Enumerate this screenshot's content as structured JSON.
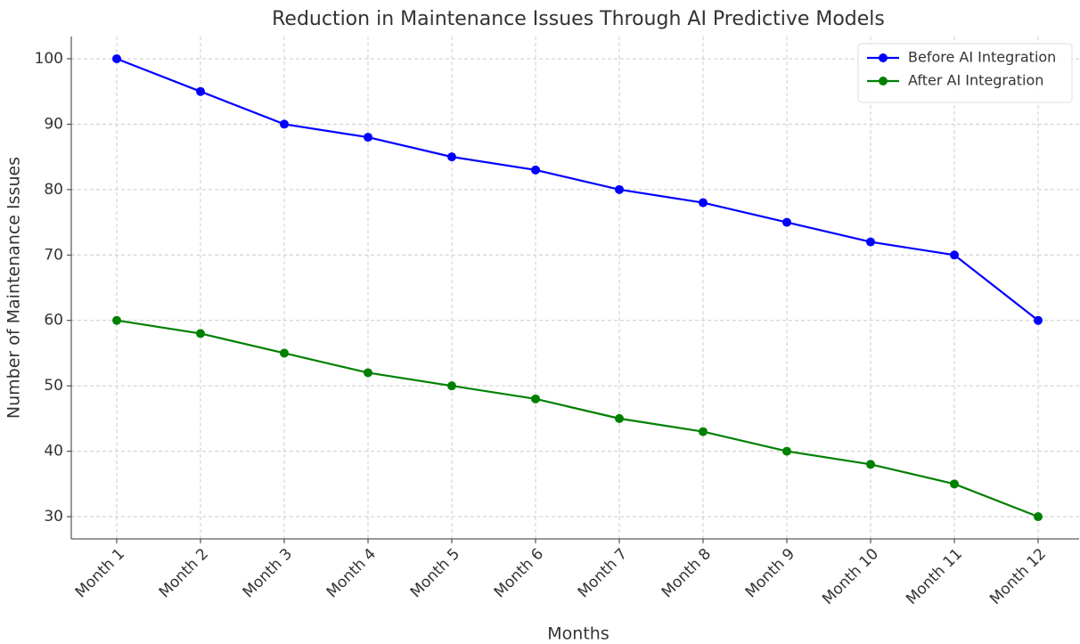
{
  "chart_data": {
    "type": "line",
    "title": "Reduction in Maintenance Issues Through AI Predictive Models",
    "x_label": "Months",
    "y_label": "Number of Maintenance Issues",
    "categories": [
      "Month 1",
      "Month 2",
      "Month 3",
      "Month 4",
      "Month 5",
      "Month 6",
      "Month 7",
      "Month 8",
      "Month 9",
      "Month 10",
      "Month 11",
      "Month 12"
    ],
    "series": [
      {
        "name": "Before AI Integration",
        "color": "#0000ff",
        "values": [
          100,
          95,
          90,
          88,
          85,
          83,
          80,
          78,
          75,
          72,
          70,
          60
        ]
      },
      {
        "name": "After AI Integration",
        "color": "#008000",
        "values": [
          60,
          58,
          55,
          52,
          50,
          48,
          45,
          43,
          40,
          38,
          35,
          30
        ]
      }
    ],
    "ylim": [
      26.6,
      103.4
    ],
    "yticks": [
      30,
      40,
      50,
      60,
      70,
      80,
      90,
      100
    ],
    "grid": true,
    "legend": "upper right"
  }
}
